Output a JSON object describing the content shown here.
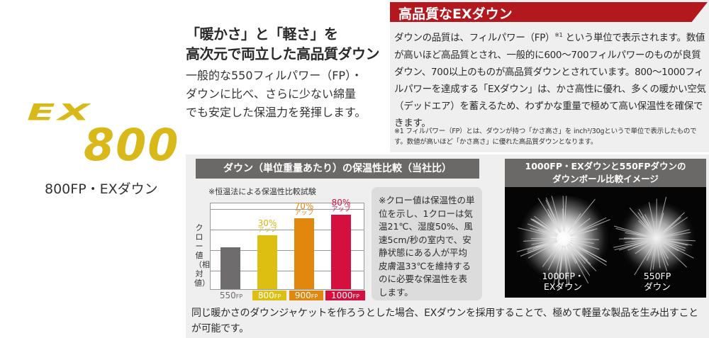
{
  "logo": {
    "mark_ex": "EX",
    "mark_num": "800",
    "caption": "800FP・EXダウン",
    "color": "#d9b81a"
  },
  "intro": {
    "headline_line1": "「暖かさ」と「軽さ」を",
    "headline_line2": "高次元で両立した高品質ダウン",
    "body_line1": "一般的な550フィルパワー（FP）・",
    "body_line2": "ダウンに比べ、さらに少ない綿量",
    "body_line3": "でも安定した保温力を発揮します。"
  },
  "quality": {
    "banner_title": "高品質なEXダウン",
    "banner_color": "#b3181f",
    "para_part1": "ダウンの品質は、フィルパワー（FP）",
    "para_ref": "※1",
    "para_part2": " という単位で表示されます。数値が高いほど高品質とされ、一般的に600〜700フィルパワーのものが良質ダウン、700以上のものが高品質ダウンとされています。800〜1000フィルパワーを達成する「EXダウン」は、かさ高性に優れ、多くの暖かい空気（デッドエア）を蓄えるため、わずかな重量で極めて高い保温性を確保できます。",
    "footnote": "※1 フィルパワー（FP）とは、ダウンが持つ「かさ高さ」を inch³/30gというで単位で表示したものです。数値が高いほど「かさ高さ」に優れた高品質ダウンとなります。"
  },
  "chart_section": {
    "title": "ダウン（単位重量あたり）の保温性比較（当社比）",
    "subnote": "※恒温法による保温性比較試験",
    "y_axis_label": "クロー値（相対値）",
    "clo_note": "※クロー値は保温性の単位を示し、1クローは気温21℃、湿度50%、風速5cm/秒の室内で、安静状態にある人が平均皮膚温33℃を維持するのに必要な保温性を表します。"
  },
  "chart_data": {
    "type": "bar",
    "title": "ダウン（単位重量あたり）の保温性比較（当社比）",
    "subtitle": "※恒温法による保温性比較試験",
    "xlabel": "",
    "ylabel": "クロー値（相対値）",
    "categories": [
      "550FP",
      "800FP",
      "900FP",
      "1000FP"
    ],
    "category_main": [
      "550",
      "800",
      "900",
      "1000"
    ],
    "category_unit": "FP",
    "values": [
      100,
      130,
      170,
      180
    ],
    "annotations": [
      "",
      "30% アップ",
      "70% アップ",
      "80% アップ"
    ],
    "annotation_pct": [
      "",
      "30%",
      "70%",
      "80%"
    ],
    "annotation_word": "アップ",
    "colors": [
      "#6e6c6c",
      "#dcbf10",
      "#e2870e",
      "#d5103f"
    ],
    "label_colors": [
      "#d5b412",
      "#e2870e",
      "#d5103f"
    ],
    "ylim": [
      0,
      210
    ],
    "grid": true,
    "y_tick_labels": false,
    "legend": "none"
  },
  "photo_panel": {
    "title_line1": "1000FP・EXダウンと550FPダウンの",
    "title_line2": "ダウンボール比較イメージ",
    "left_caption_line1": "1000FP・",
    "left_caption_line2": "EXダウン",
    "right_caption_line1": "550FP",
    "right_caption_line2": "ダウン"
  },
  "bottom_text": "同じ暖かさのダウンジャケットを作ろうとした場合、EXダウンを採用することで、極めて軽量な製品を生み出すことが可能です。"
}
